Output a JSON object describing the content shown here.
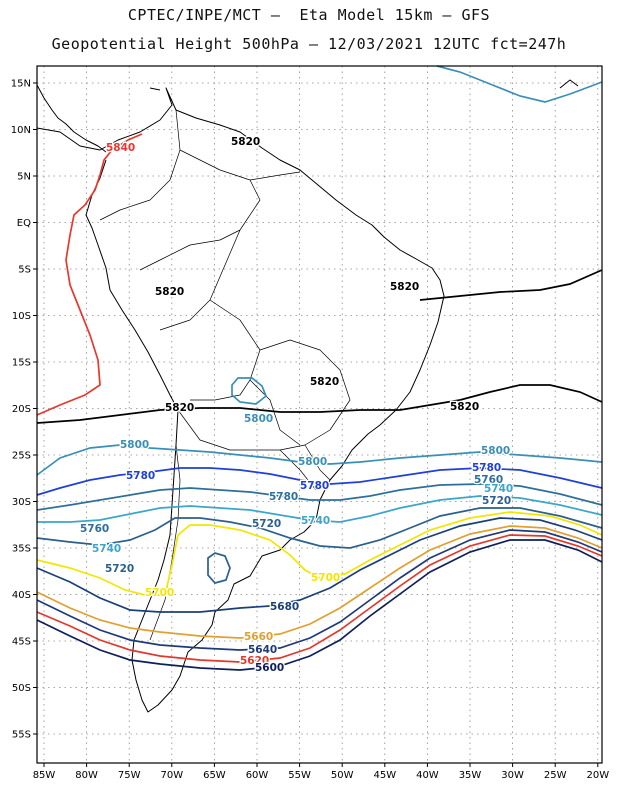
{
  "header": {
    "line1": "CPTEC/INPE/MCT –  Eta Model 15km – GFS",
    "line2": "Geopotential Height 500hPa – 12/03/2021 12UTC fct=247h"
  },
  "axes": {
    "lat_ticks": [
      "15N",
      "10N",
      "5N",
      "EQ",
      "5S",
      "10S",
      "15S",
      "20S",
      "25S",
      "30S",
      "35S",
      "40S",
      "45S",
      "50S",
      "55S"
    ],
    "lon_ticks": [
      "85W",
      "80W",
      "75W",
      "70W",
      "65W",
      "60W",
      "55W",
      "50W",
      "45W",
      "40W",
      "35W",
      "30W",
      "25W",
      "20W"
    ]
  },
  "colors": {
    "c5820": "#000000",
    "c5840": "#e8372c",
    "c5800": "#3a8fb7",
    "c5780": "#1f3fd6",
    "c5760": "#2e6f9a",
    "c5740": "#3aa6c8",
    "c5720": "#2b5f8c",
    "c5700": "#f2e600",
    "c5680": "#1b3f7a",
    "c5660": "#e0a030",
    "c5640": "#1f3a78",
    "c5620": "#e03a2c",
    "c5600": "#0f1f5a",
    "coast": "#000000",
    "grid": "#8a8a8a"
  },
  "labels": {
    "l5840": "5840",
    "l5820a": "5820",
    "l5820b": "5820",
    "l5820c": "5820",
    "l5820d": "5820",
    "l5820e": "5820",
    "l5820f": "5820",
    "l5800a": "5800",
    "l5800b": "5800",
    "l5800c": "5800",
    "l5800d": "5800",
    "l5780a": "5780",
    "l5780b": "5780",
    "l5780c": "5780",
    "l5780d": "5780",
    "l5760a": "5760",
    "l5760b": "5760",
    "l5740a": "5740",
    "l5740b": "5740",
    "l5740c": "5740",
    "l5720a": "5720",
    "l5720b": "5720",
    "l5720c": "5720",
    "l5700a": "5700",
    "l5700b": "5700",
    "l5680": "5680",
    "l5660": "5660",
    "l5640": "5640",
    "l5620": "5620",
    "l5600": "5600"
  }
}
